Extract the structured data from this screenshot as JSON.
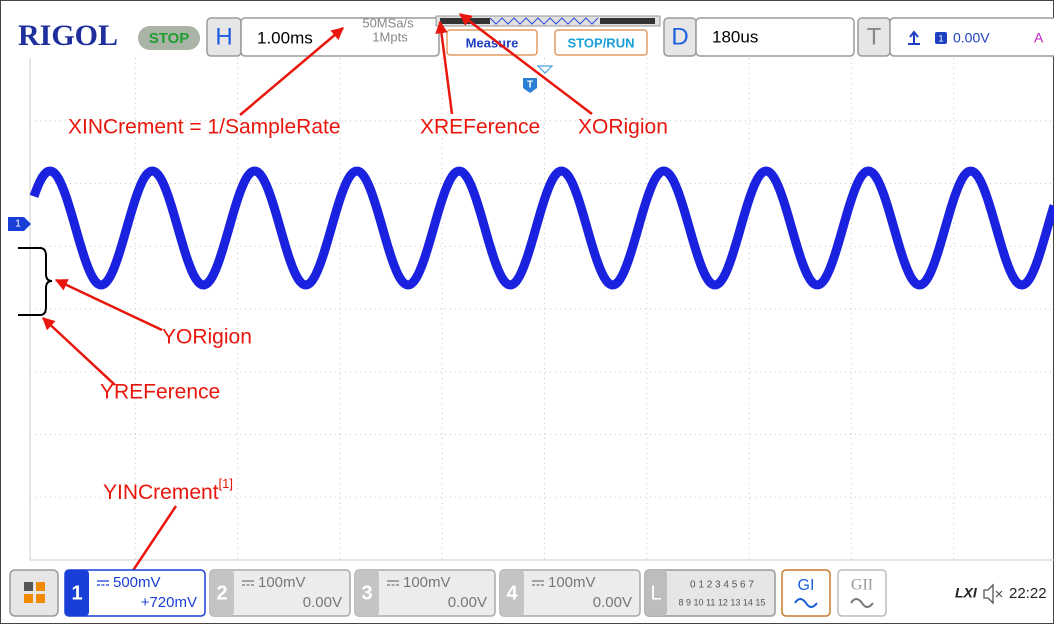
{
  "header": {
    "logo": "RIGOL",
    "status": "STOP",
    "horizontal": {
      "label": "H",
      "timebase": "1.00ms",
      "sample_rate": "50MSa/s",
      "depth": "1Mpts"
    },
    "buttons": {
      "measure": "Measure",
      "stop_run": "STOP/RUN"
    },
    "delay": {
      "label": "D",
      "value": "180us"
    },
    "trigger": {
      "label": "T",
      "source": "1",
      "level": "0.00V",
      "mode": "A"
    }
  },
  "screen": {
    "channel_marker": "1",
    "trigger_marker": "T"
  },
  "annotations": {
    "xincrement": "XINCrement = 1/SampleRate",
    "xreference": "XREFerence",
    "xorigion": "XORigion",
    "yorigion": "YORigion",
    "yreference": "YREFerence",
    "yincrement": {
      "text": "YINCrement",
      "superscript": "[1]"
    }
  },
  "footer": {
    "channels": [
      {
        "number": "1",
        "scale": "500mV",
        "offset": "+720mV"
      },
      {
        "number": "2",
        "scale": "100mV",
        "offset": "0.00V"
      },
      {
        "number": "3",
        "scale": "100mV",
        "offset": "0.00V"
      },
      {
        "number": "4",
        "scale": "100mV",
        "offset": "0.00V"
      }
    ],
    "logic": {
      "label": "L",
      "bits_top": "0 1 2 3  4 5 6 7",
      "bits_bottom": "8 9 10 11 12 13 14 15"
    },
    "generators": [
      "GI",
      "GII"
    ],
    "lxi": "LXI",
    "time": "22:22"
  }
}
